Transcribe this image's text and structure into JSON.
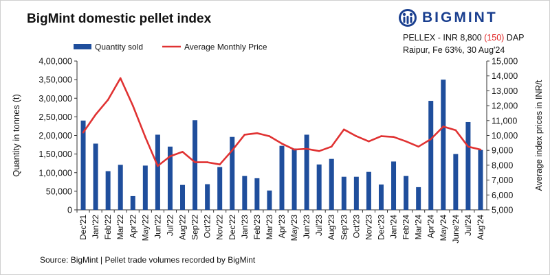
{
  "header": {
    "title": "BigMint domestic pellet index",
    "logo_text": "BIGMINT",
    "pellex_prefix": "PELLEX - INR 8,800 ",
    "pellex_change": "(150)",
    "pellex_suffix": " DAP",
    "pellex_line2": "Raipur, Fe 63%, 30 Aug'24"
  },
  "footer": {
    "source": "Source: BigMint | Pellet trade volumes recorded by BigMint"
  },
  "colors": {
    "bar": "#1f4e9c",
    "line": "#e03232",
    "logo": "#1a3f8f",
    "change_negative": "#e02020"
  },
  "chart_data": {
    "type": "bar+line",
    "title": "BigMint domestic pellet index",
    "categories": [
      "Dec'21",
      "Jan'22",
      "Feb'22",
      "Mar'22",
      "Apr'22",
      "May'22",
      "Jun'22",
      "Jul'22",
      "Aug'22",
      "Sep'22",
      "Oct'22",
      "Nov'22",
      "Dec'22",
      "Jan'23",
      "Feb'23",
      "Mar'23",
      "Apr'23",
      "May'23",
      "Jun'23",
      "Jul'23",
      "Aug'23",
      "Sep'23",
      "Oct'23",
      "Nov'23",
      "Dec'23",
      "Jan'24",
      "Feb'24",
      "Mar'24",
      "Apr'24",
      "May'24",
      "June'24",
      "Jul'24",
      "Aug'24"
    ],
    "series": [
      {
        "name": "Quantity sold",
        "type": "bar",
        "axis": "left",
        "values": [
          240000,
          178000,
          104000,
          121000,
          37000,
          119000,
          202000,
          170000,
          67000,
          241000,
          69000,
          115000,
          196000,
          91000,
          85000,
          52000,
          172000,
          165000,
          202000,
          122000,
          137000,
          89000,
          89000,
          102000,
          68000,
          130000,
          91000,
          61000,
          293000,
          350000,
          150000,
          236000,
          161000
        ]
      },
      {
        "name": "Average Monthly Price",
        "type": "line",
        "axis": "right",
        "values": [
          10200,
          11400,
          12400,
          13850,
          12000,
          9900,
          7950,
          8600,
          8900,
          8200,
          8200,
          8050,
          9000,
          10050,
          10150,
          9950,
          9450,
          9050,
          9100,
          8950,
          9250,
          10400,
          9950,
          9600,
          9950,
          9900,
          9600,
          9250,
          9750,
          10600,
          10350,
          9250,
          9050
        ]
      }
    ],
    "left_axis": {
      "label": "Quantity in tonnes (t)",
      "min": 0,
      "max": 400000,
      "step": 50000,
      "tick_labels": [
        "0",
        "50,000",
        "1,00,000",
        "1,50,000",
        "2,00,000",
        "2,50,000",
        "3,00,000",
        "3,50,000",
        "4,00,000"
      ]
    },
    "right_axis": {
      "label": "Average index prices in INR/t",
      "min": 5000,
      "max": 15000,
      "step": 1000,
      "tick_labels": [
        "5,000",
        "6,000",
        "7,000",
        "8,000",
        "9,000",
        "10,000",
        "11,000",
        "12,000",
        "13,000",
        "14,000",
        "15,000"
      ]
    },
    "legend": {
      "position": "top-left",
      "items": [
        "Quantity sold",
        "Average Monthly Price"
      ]
    },
    "grid": false
  }
}
